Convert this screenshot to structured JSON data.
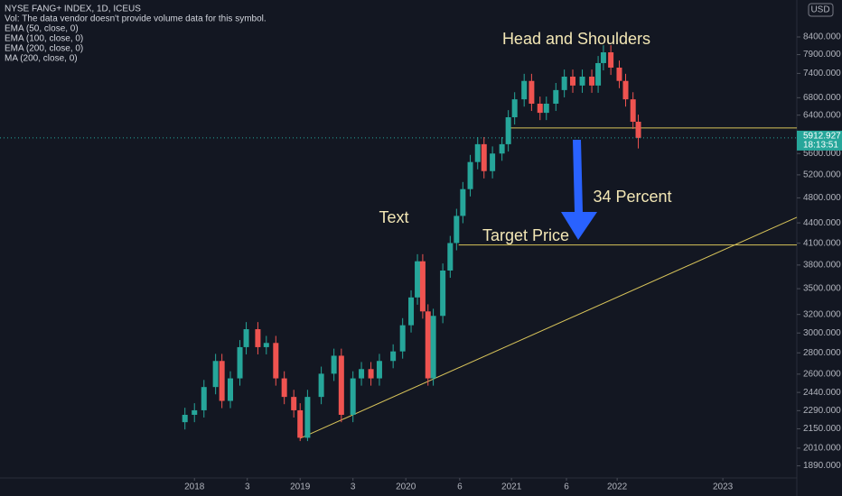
{
  "chart_data": {
    "type": "candlestick",
    "legend_lines": [
      "NYSE FANG+ INDEX, 1D, ICEUS",
      "Vol: The data vendor doesn't provide volume data for this symbol.",
      "EMA (50, close, 0)",
      "EMA (100, close, 0)",
      "EMA (200, close, 0)",
      "MA (200, close, 0)"
    ],
    "currency": "USD",
    "annotations": [
      "Head and Shoulders",
      "Text",
      "34 Percent",
      "Target Price"
    ],
    "last_price": 5912.927,
    "countdown": "18:13:51",
    "log_scale": true,
    "grid": false,
    "up_color": "#26a69a",
    "down_color": "#ef5350",
    "line_color": "#d8c45a",
    "xlim": [
      2016.16,
      2023.7
    ],
    "xticks": [
      2018,
      {
        "value": 2018.5,
        "label": "3"
      },
      2019,
      {
        "value": 2019.5,
        "label": "3"
      },
      2020,
      {
        "value": 2020.51,
        "label": "6"
      },
      2021,
      {
        "value": 2021.52,
        "label": "6"
      },
      2022,
      2023
    ],
    "ylim": [
      1812,
      9552
    ],
    "yticks": [
      {
        "value": 1890,
        "label": "1890.000"
      },
      {
        "value": 2010,
        "label": "2010.000"
      },
      {
        "value": 2150,
        "label": "2150.000"
      },
      {
        "value": 2290,
        "label": "2290.000"
      },
      {
        "value": 2440,
        "label": "2440.000"
      },
      {
        "value": 2600,
        "label": "2600.000"
      },
      {
        "value": 2800,
        "label": "2800.000"
      },
      {
        "value": 3000,
        "label": "3000.000"
      },
      {
        "value": 3200,
        "label": "3200.000"
      },
      {
        "value": 3500,
        "label": "3500.000"
      },
      {
        "value": 3800,
        "label": "3800.000"
      },
      {
        "value": 4100,
        "label": "4100.000"
      },
      {
        "value": 4400,
        "label": "4400.000"
      },
      {
        "value": 4800,
        "label": "4800.000"
      },
      {
        "value": 5200,
        "label": "5200.000"
      },
      {
        "value": 5600,
        "label": "5600.000"
      },
      {
        "value": 6400,
        "label": "6400.000"
      },
      {
        "value": 6800,
        "label": "6800.000"
      },
      {
        "value": 7400,
        "label": "7400.000"
      },
      {
        "value": 7900,
        "label": "7900.000"
      },
      {
        "value": 8400,
        "label": "8400.000"
      }
    ],
    "x": [
      2017.91,
      2018.0,
      2018.09,
      2018.2,
      2018.26,
      2018.34,
      2018.43,
      2018.49,
      2018.6,
      2018.68,
      2018.77,
      2018.85,
      2018.94,
      2019.0,
      2019.07,
      2019.2,
      2019.32,
      2019.39,
      2019.5,
      2019.58,
      2019.67,
      2019.75,
      2019.88,
      2019.97,
      2020.05,
      2020.11,
      2020.16,
      2020.21,
      2020.26,
      2020.35,
      2020.42,
      2020.48,
      2020.54,
      2020.61,
      2020.68,
      2020.74,
      2020.82,
      2020.91,
      2020.97,
      2021.03,
      2021.12,
      2021.19,
      2021.27,
      2021.33,
      2021.42,
      2021.5,
      2021.58,
      2021.67,
      2021.76,
      2021.82,
      2021.87,
      2021.94,
      2022.02,
      2022.08,
      2022.15,
      2022.2
    ],
    "open": [
      2200,
      2257,
      2293,
      2486,
      2722,
      2369,
      2562,
      2856,
      3040,
      2856,
      2898,
      2562,
      2402,
      2293,
      2084,
      2402,
      2604,
      2772,
      2257,
      2562,
      2646,
      2562,
      2722,
      2814,
      3082,
      3395,
      3850,
      3234,
      2562,
      3184,
      3728,
      4102,
      4508,
      4948,
      5437,
      5785,
      5268,
      5600,
      5785,
      6353,
      6762,
      7209,
      6660,
      6452,
      6660,
      6983,
      7317,
      7094,
      7317,
      7094,
      7670,
      7963,
      7550,
      7209,
      6762,
      6255
    ],
    "high": [
      2313,
      2350,
      2548,
      2790,
      2790,
      2626,
      2927,
      3116,
      3116,
      2970,
      2970,
      2626,
      2462,
      2350,
      2462,
      2669,
      2841,
      2841,
      2626,
      2712,
      2712,
      2790,
      2884,
      3159,
      3480,
      3946,
      3946,
      3315,
      3264,
      3821,
      4205,
      4621,
      5072,
      5573,
      5930,
      5930,
      5740,
      5930,
      6512,
      6931,
      7389,
      7389,
      6827,
      6827,
      7158,
      7500,
      7500,
      7500,
      7500,
      7862,
      8162,
      8162,
      7739,
      7389,
      6931,
      6411
    ],
    "low": [
      2145,
      2200,
      2236,
      2424,
      2310,
      2310,
      2498,
      2785,
      2785,
      2785,
      2498,
      2342,
      2236,
      2060,
      2060,
      2342,
      2539,
      2200,
      2200,
      2498,
      2498,
      2498,
      2654,
      2744,
      3005,
      3310,
      3153,
      2498,
      2498,
      3104,
      3635,
      4000,
      4395,
      4824,
      5301,
      5136,
      5136,
      5460,
      5640,
      6194,
      6593,
      6494,
      6291,
      6291,
      6494,
      6808,
      6917,
      6917,
      6917,
      6917,
      7478,
      7361,
      7029,
      6593,
      6099,
      5700
    ],
    "close": [
      2257,
      2293,
      2486,
      2722,
      2369,
      2562,
      2856,
      3040,
      2856,
      2898,
      2562,
      2402,
      2293,
      2084,
      2402,
      2604,
      2772,
      2257,
      2562,
      2646,
      2562,
      2722,
      2814,
      3082,
      3395,
      3850,
      3234,
      2562,
      3184,
      3728,
      4102,
      4508,
      4948,
      5437,
      5785,
      5268,
      5600,
      5785,
      6353,
      6762,
      7209,
      6660,
      6452,
      6660,
      6983,
      7317,
      7094,
      7317,
      7094,
      7670,
      7963,
      7550,
      7209,
      6762,
      6255,
      5913
    ],
    "trend_lines": [
      {
        "x": [
          2019.0,
          2023.7
        ],
        "y": [
          2080,
          4487
        ]
      },
      {
        "x": [
          2020.97,
          2023.7
        ],
        "y": [
          6121,
          6121
        ]
      },
      {
        "x": [
          2020.5,
          2023.7
        ],
        "y": [
          4074,
          4074
        ]
      }
    ]
  }
}
